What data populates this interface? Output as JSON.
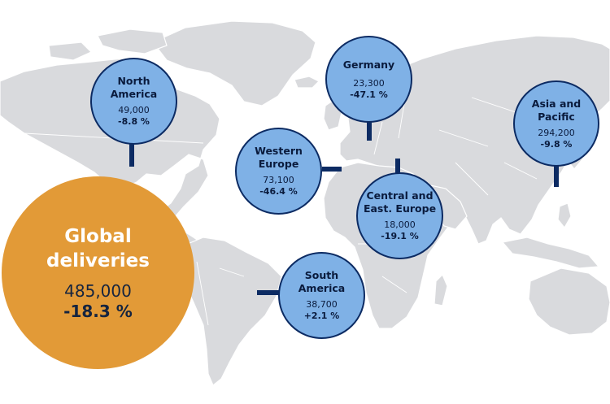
{
  "map": {
    "land_color": "#d9dadd",
    "bubble_color": "#7fb1e6",
    "connector_color": "#0c2b63",
    "global_color": "#e29a37"
  },
  "global": {
    "title": "Global\ndeliveries",
    "value": "485,000",
    "change": "-18.3 %"
  },
  "regions": {
    "north_america": {
      "name": "North\nAmerica",
      "value": "49,000",
      "change": "-8.8 %"
    },
    "germany": {
      "name": "Germany",
      "value": "23,300",
      "change": "-47.1 %"
    },
    "asia_pacific": {
      "name": "Asia and\nPacific",
      "value": "294,200",
      "change": "-9.8 %"
    },
    "western_europe": {
      "name": "Western\nEurope",
      "value": "73,100",
      "change": "-46.4 %"
    },
    "central_east_europe": {
      "name": "Central and\nEast. Europe",
      "value": "18,000",
      "change": "-19.1 %"
    },
    "south_america": {
      "name": "South\nAmerica",
      "value": "38,700",
      "change": "+2.1 %"
    }
  }
}
